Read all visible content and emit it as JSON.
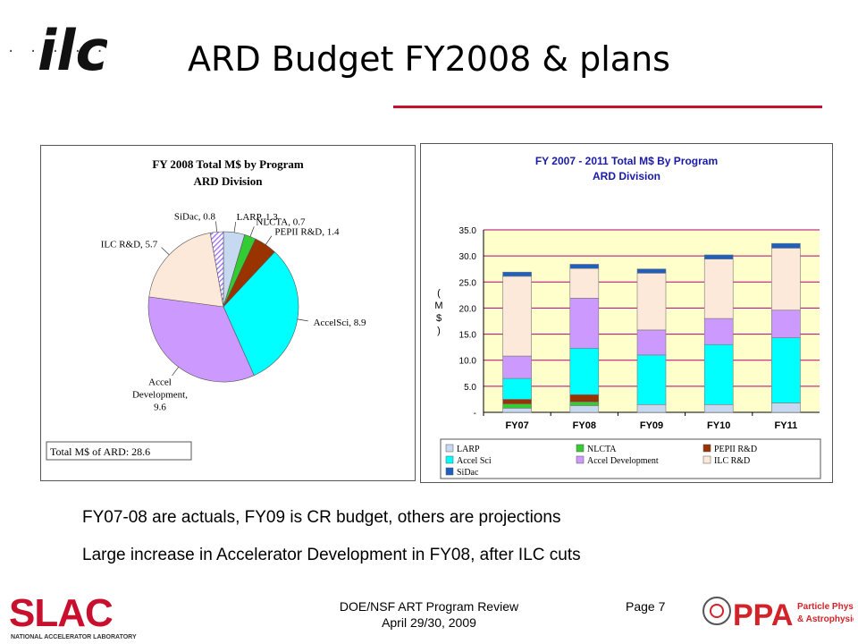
{
  "slide": {
    "title": "ARD Budget FY2008 & plans",
    "logo_text": "ilc",
    "dots": ". . . . .",
    "notes": [
      "FY07-08 are actuals, FY09 is CR budget, others are projections",
      "Large increase in Accelerator Development in FY08, after ILC cuts"
    ],
    "footer": {
      "line1": "DOE/NSF ART Program Review",
      "line2": "April 29/30, 2009",
      "page": "Page 7"
    },
    "slac_logo": {
      "text": "SLAC",
      "subtitle": "NATIONAL ACCELERATOR LABORATORY"
    },
    "ppa_logo": {
      "text": "PPA",
      "line1": "Particle Physics",
      "line2": "& Astrophysics"
    },
    "colors": {
      "rule": "#c8102e",
      "slac_red": "#c8102e",
      "ppa_red": "#d2232a"
    }
  },
  "chart_data": [
    {
      "type": "pie",
      "title": "FY 2008 Total M$ by Program",
      "subtitle": "ARD Division",
      "slices": [
        {
          "name": "LARP",
          "value": 1.3,
          "label": "LARP, 1.3",
          "color": "#c6d9f1"
        },
        {
          "name": "NLCTA",
          "value": 0.7,
          "label": "NLCTA, 0.7",
          "color": "#33cc33"
        },
        {
          "name": "PEPII R&D",
          "value": 1.4,
          "label": "PEPII R&D, 1.4",
          "color": "#993300"
        },
        {
          "name": "AccelSci",
          "value": 8.9,
          "label": "AccelSci, 8.9",
          "color": "#00ffff"
        },
        {
          "name": "Accel Development",
          "value": 9.6,
          "label_lines": [
            "Accel",
            "Development,",
            "9.6"
          ],
          "color": "#cc99ff"
        },
        {
          "name": "ILC R&D",
          "value": 5.7,
          "label": "ILC R&D, 5.7",
          "color": "#fde9d9"
        },
        {
          "name": "SiDac",
          "value": 0.8,
          "label": "SiDac, 0.8",
          "color": "#9966ff",
          "pattern": "hatch"
        }
      ],
      "total_label": "Total M$ of ARD: 28.6"
    },
    {
      "type": "bar",
      "stacked": true,
      "title": "FY 2007 - 2011 Total M$ By Program",
      "subtitle": "ARD Division",
      "ylabel": "( M $ )",
      "ylim": [
        0,
        35
      ],
      "yticks": [
        "-",
        "5.0",
        "10.0",
        "15.0",
        "20.0",
        "25.0",
        "30.0",
        "35.0"
      ],
      "categories": [
        "FY07",
        "FY08",
        "FY09",
        "FY10",
        "FY11"
      ],
      "series": [
        {
          "name": "LARP",
          "color": "#c6d9f1",
          "values": [
            0.8,
            1.3,
            1.5,
            1.5,
            1.8
          ]
        },
        {
          "name": "NLCTA",
          "color": "#33cc33",
          "values": [
            0.8,
            0.7,
            0,
            0,
            0
          ]
        },
        {
          "name": "PEPII R&D",
          "color": "#993300",
          "values": [
            0.9,
            1.4,
            0,
            0,
            0
          ]
        },
        {
          "name": "Accel Sci",
          "color": "#00ffff",
          "values": [
            4.0,
            8.9,
            9.5,
            11.5,
            12.5
          ]
        },
        {
          "name": "Accel Development",
          "color": "#cc99ff",
          "values": [
            4.3,
            9.6,
            4.8,
            5.0,
            5.3
          ]
        },
        {
          "name": "ILC R&D",
          "color": "#fde9d9",
          "values": [
            15.3,
            5.7,
            10.9,
            11.4,
            11.9
          ]
        },
        {
          "name": "SiDac",
          "color": "#1f5fbf",
          "values": [
            0.8,
            0.8,
            0.8,
            0.8,
            0.9
          ]
        }
      ],
      "legend_position": "bottom",
      "grid": true
    }
  ]
}
